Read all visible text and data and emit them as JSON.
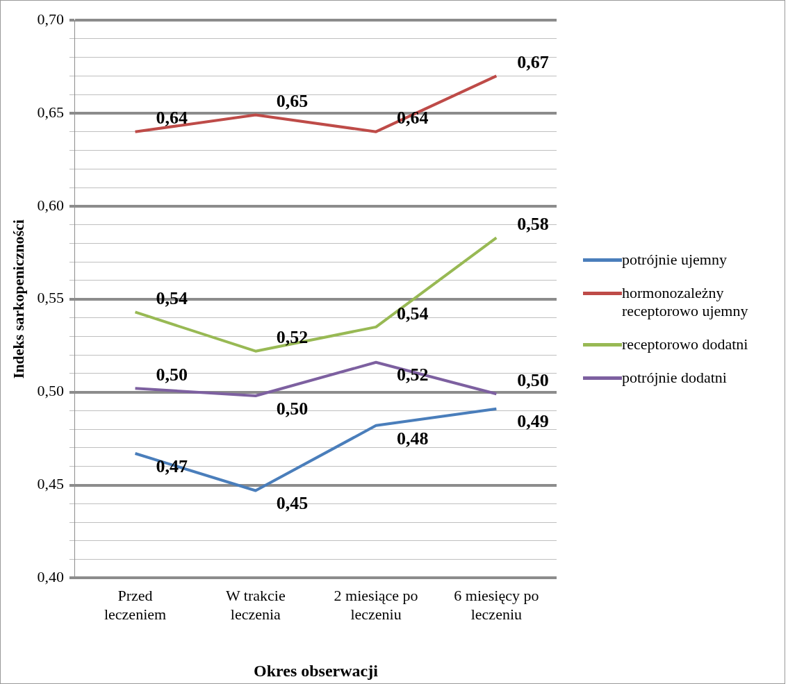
{
  "chart_data": {
    "type": "line",
    "xlabel": "Okres obserwacji",
    "ylabel": "Indeks sarkopeniczności",
    "categories": [
      "Przed leczeniem",
      "W trakcie leczenia",
      "2 miesiące po leczeniu",
      "6 miesięcy po leczeniu"
    ],
    "series": [
      {
        "name": "potrójnie ujemny",
        "color": "#4a7ebb",
        "values": [
          0.467,
          0.447,
          0.482,
          0.491
        ],
        "value_labels": [
          "0,47",
          "0,45",
          "0,48",
          "0,49"
        ]
      },
      {
        "name": "hormonozależny receptorowo ujemny",
        "color": "#be4b48",
        "values": [
          0.64,
          0.649,
          0.64,
          0.67
        ],
        "value_labels": [
          "0,64",
          "0,65",
          "0,64",
          "0,67"
        ]
      },
      {
        "name": "receptorowo dodatni",
        "color": "#98b954",
        "values": [
          0.543,
          0.522,
          0.535,
          0.583
        ],
        "value_labels": [
          "0,54",
          "0,52",
          "0,54",
          "0,58"
        ]
      },
      {
        "name": "potrójnie dodatni",
        "color": "#7d60a0",
        "values": [
          0.502,
          0.498,
          0.516,
          0.499
        ],
        "value_labels": [
          "0,50",
          "0,50",
          "0,52",
          "0,50"
        ]
      }
    ],
    "ylim": [
      0.4,
      0.7
    ],
    "yticks": [
      {
        "value": 0.4,
        "label": "0,40"
      },
      {
        "value": 0.41,
        "label": null
      },
      {
        "value": 0.42,
        "label": null
      },
      {
        "value": 0.43,
        "label": null
      },
      {
        "value": 0.44,
        "label": null
      },
      {
        "value": 0.45,
        "label": "0,45"
      },
      {
        "value": 0.46,
        "label": null
      },
      {
        "value": 0.47,
        "label": null
      },
      {
        "value": 0.48,
        "label": null
      },
      {
        "value": 0.49,
        "label": null
      },
      {
        "value": 0.5,
        "label": "0,50"
      },
      {
        "value": 0.51,
        "label": null
      },
      {
        "value": 0.52,
        "label": null
      },
      {
        "value": 0.53,
        "label": null
      },
      {
        "value": 0.54,
        "label": null
      },
      {
        "value": 0.55,
        "label": "0,55"
      },
      {
        "value": 0.56,
        "label": null
      },
      {
        "value": 0.57,
        "label": null
      },
      {
        "value": 0.58,
        "label": null
      },
      {
        "value": 0.59,
        "label": null
      },
      {
        "value": 0.6,
        "label": "0,60"
      },
      {
        "value": 0.61,
        "label": null
      },
      {
        "value": 0.62,
        "label": null
      },
      {
        "value": 0.63,
        "label": null
      },
      {
        "value": 0.64,
        "label": null
      },
      {
        "value": 0.65,
        "label": "0,65"
      },
      {
        "value": 0.66,
        "label": null
      },
      {
        "value": 0.67,
        "label": null
      },
      {
        "value": 0.68,
        "label": null
      },
      {
        "value": 0.69,
        "label": null
      },
      {
        "value": 0.7,
        "label": "0,70"
      }
    ],
    "grid": "y",
    "legend": "right",
    "marker": "none",
    "line_style": "solid"
  }
}
